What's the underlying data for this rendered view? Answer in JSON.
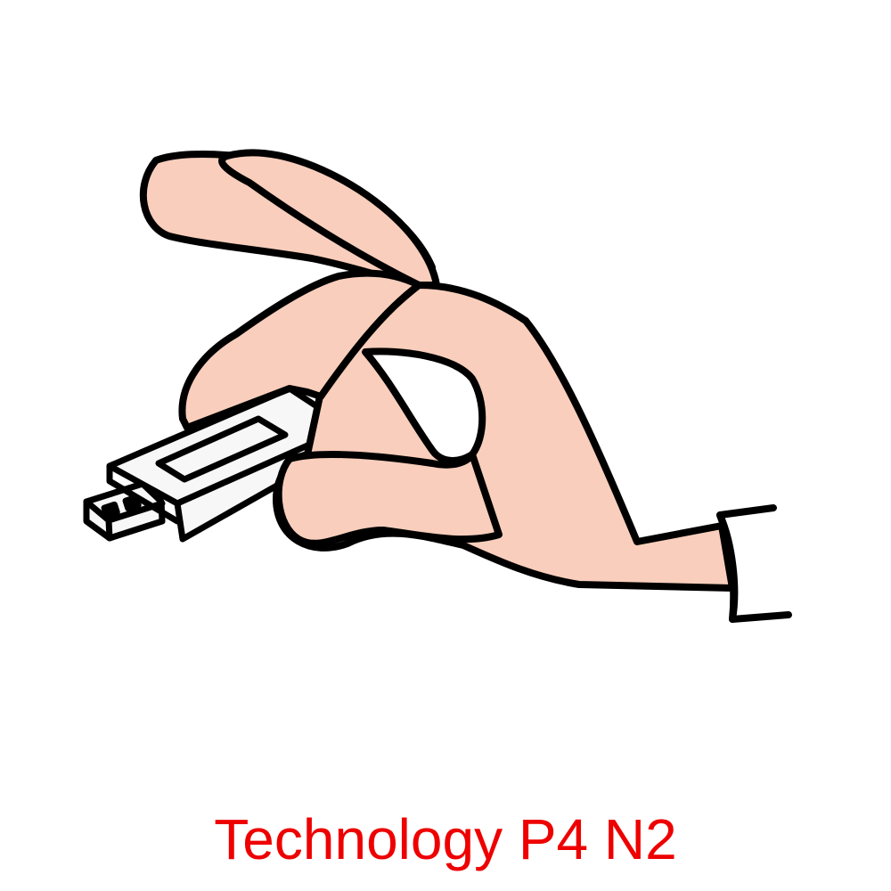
{
  "caption": {
    "text": "Technology P4 N2",
    "color": "#ee0000"
  },
  "illustration": {
    "subject": "hand-holding-usb-drive-icon",
    "colors": {
      "skin": "#f9cebc",
      "usb_body": "#f7f7f7",
      "outline": "#000000",
      "background": "#ffffff"
    }
  }
}
